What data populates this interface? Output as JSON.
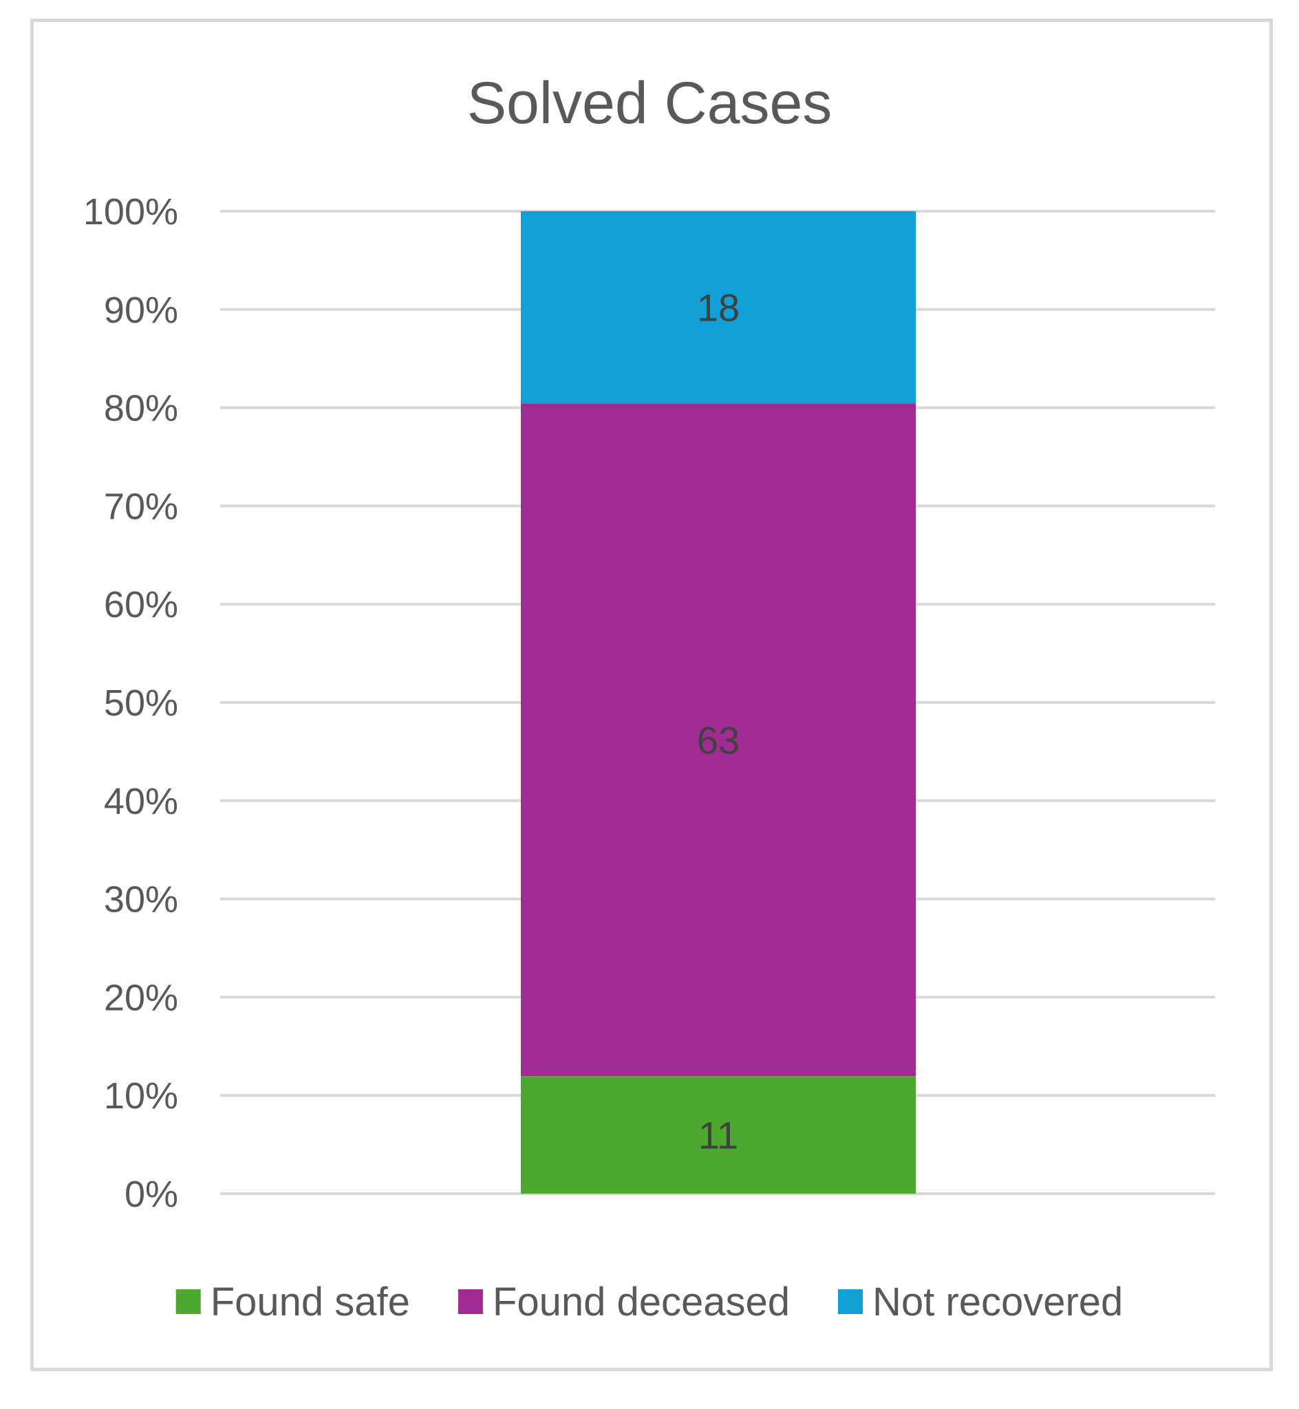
{
  "chart_data": {
    "type": "bar",
    "stacked": "percent",
    "title": "Solved Cases",
    "xlabel": "",
    "ylabel": "",
    "categories": [
      ""
    ],
    "ylim": [
      0,
      100
    ],
    "yticks": [
      "0%",
      "10%",
      "20%",
      "30%",
      "40%",
      "50%",
      "60%",
      "70%",
      "80%",
      "90%",
      "100%"
    ],
    "grid": true,
    "legend_position": "bottom",
    "series": [
      {
        "name": "Found safe",
        "values": [
          11
        ],
        "color": "#4ea72e"
      },
      {
        "name": "Found deceased",
        "values": [
          63
        ],
        "color": "#a02b93"
      },
      {
        "name": "Not recovered",
        "values": [
          18
        ],
        "color": "#119fd6"
      }
    ]
  }
}
